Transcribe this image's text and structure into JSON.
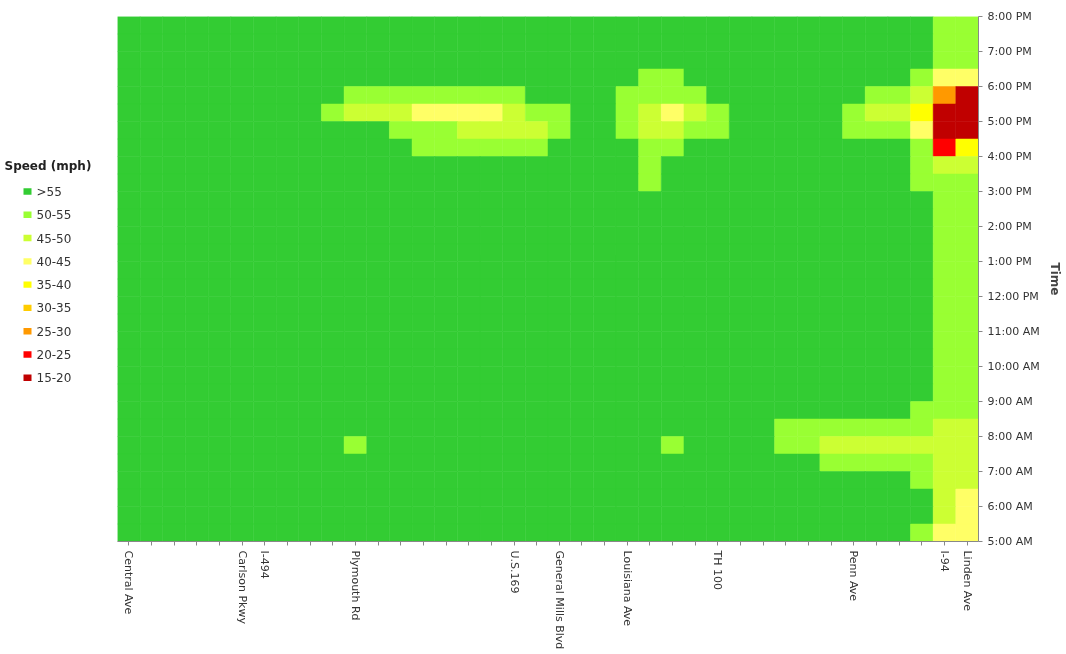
{
  "chart_data": {
    "type": "heatmap",
    "xlabel": null,
    "ylabel": "Time",
    "clabel": "Speed (mph)",
    "categories": [
      "Central Ave",
      null,
      null,
      null,
      null,
      "Carlson Pkwy",
      "I-494",
      null,
      null,
      null,
      "Plymouth Rd",
      null,
      null,
      null,
      null,
      null,
      null,
      "U.S.169",
      null,
      "General Mills Blvd",
      null,
      null,
      "Louisiana Ave",
      null,
      null,
      null,
      "TH 100",
      null,
      null,
      null,
      null,
      null,
      "Penn Ave",
      null,
      null,
      null,
      "I-94",
      "Linden Ave"
    ],
    "ylim": [
      5,
      20
    ],
    "yticks": [
      {
        "value": 5,
        "label": "5:00 AM"
      },
      {
        "value": 6,
        "label": "6:00 AM"
      },
      {
        "value": 7,
        "label": "7:00 AM"
      },
      {
        "value": 8,
        "label": "8:00 AM"
      },
      {
        "value": 9,
        "label": "9:00 AM"
      },
      {
        "value": 10,
        "label": "10:00 AM"
      },
      {
        "value": 11,
        "label": "11:00 AM"
      },
      {
        "value": 12,
        "label": "12:00 PM"
      },
      {
        "value": 13,
        "label": "1:00 PM"
      },
      {
        "value": 14,
        "label": "2:00 PM"
      },
      {
        "value": 15,
        "label": "3:00 PM"
      },
      {
        "value": 16,
        "label": "4:00 PM"
      },
      {
        "value": 17,
        "label": "5:00 PM"
      },
      {
        "value": 18,
        "label": "6:00 PM"
      },
      {
        "value": 19,
        "label": "7:00 PM"
      },
      {
        "value": 20,
        "label": "8:00 PM"
      }
    ],
    "cticks": [
      {
        "value": 55,
        "label": ">55"
      },
      {
        "value": 50,
        "label": "50-55"
      },
      {
        "value": 45,
        "label": "45-50"
      },
      {
        "value": 40,
        "label": "40-45"
      },
      {
        "value": 35,
        "label": "35-40"
      },
      {
        "value": 30,
        "label": "30-35"
      },
      {
        "value": 25,
        "label": "25-30"
      },
      {
        "value": 20,
        "label": "20-25"
      },
      {
        "value": 15,
        "label": "15-20"
      }
    ],
    "colors": [
      "#33cc33",
      "#99ff33",
      "#ccff33",
      "#ffff66",
      "#ffff00",
      "#ffcc00",
      "#ff9900",
      "#ff0000",
      "#c00000"
    ],
    "cells": [
      [
        55,
        55,
        55,
        55,
        55,
        55,
        55,
        55,
        55,
        55,
        55,
        55,
        55,
        55,
        55,
        55,
        55,
        55,
        55,
        55,
        55,
        55,
        55,
        55,
        55,
        55,
        55,
        55,
        55,
        55,
        55,
        55,
        55,
        55,
        55,
        55,
        50,
        50
      ],
      [
        55,
        55,
        55,
        55,
        55,
        55,
        55,
        55,
        55,
        55,
        55,
        55,
        55,
        55,
        55,
        55,
        55,
        55,
        55,
        55,
        55,
        55,
        55,
        55,
        55,
        55,
        55,
        55,
        55,
        55,
        55,
        55,
        55,
        55,
        55,
        55,
        50,
        50
      ],
      [
        55,
        55,
        55,
        55,
        55,
        55,
        55,
        55,
        55,
        55,
        55,
        55,
        55,
        55,
        55,
        55,
        55,
        55,
        55,
        55,
        55,
        55,
        55,
        55,
        55,
        55,
        55,
        55,
        55,
        55,
        55,
        55,
        55,
        55,
        55,
        55,
        50,
        50
      ],
      [
        55,
        55,
        55,
        55,
        55,
        55,
        55,
        55,
        55,
        55,
        55,
        55,
        55,
        55,
        55,
        55,
        55,
        55,
        55,
        55,
        55,
        55,
        55,
        50,
        50,
        55,
        55,
        55,
        55,
        55,
        55,
        55,
        55,
        55,
        55,
        50,
        40,
        40
      ],
      [
        55,
        55,
        55,
        55,
        55,
        55,
        55,
        55,
        55,
        55,
        50,
        50,
        50,
        50,
        50,
        50,
        50,
        50,
        55,
        55,
        55,
        55,
        50,
        50,
        50,
        50,
        55,
        55,
        55,
        55,
        55,
        55,
        55,
        50,
        50,
        45,
        25,
        15
      ],
      [
        55,
        55,
        55,
        55,
        55,
        55,
        55,
        55,
        55,
        50,
        45,
        45,
        45,
        40,
        40,
        40,
        40,
        45,
        50,
        50,
        55,
        55,
        50,
        45,
        40,
        45,
        50,
        55,
        55,
        55,
        55,
        55,
        50,
        45,
        45,
        35,
        15,
        15
      ],
      [
        55,
        55,
        55,
        55,
        55,
        55,
        55,
        55,
        55,
        55,
        55,
        55,
        50,
        50,
        50,
        45,
        45,
        45,
        45,
        50,
        55,
        55,
        50,
        45,
        45,
        50,
        50,
        55,
        55,
        55,
        55,
        55,
        50,
        50,
        50,
        40,
        15,
        15
      ],
      [
        55,
        55,
        55,
        55,
        55,
        55,
        55,
        55,
        55,
        55,
        55,
        55,
        55,
        50,
        50,
        50,
        50,
        50,
        50,
        55,
        55,
        55,
        55,
        50,
        50,
        55,
        55,
        55,
        55,
        55,
        55,
        55,
        55,
        55,
        55,
        50,
        20,
        35
      ],
      [
        55,
        55,
        55,
        55,
        55,
        55,
        55,
        55,
        55,
        55,
        55,
        55,
        55,
        55,
        55,
        55,
        55,
        55,
        55,
        55,
        55,
        55,
        55,
        50,
        55,
        55,
        55,
        55,
        55,
        55,
        55,
        55,
        55,
        55,
        55,
        50,
        45,
        45
      ],
      [
        55,
        55,
        55,
        55,
        55,
        55,
        55,
        55,
        55,
        55,
        55,
        55,
        55,
        55,
        55,
        55,
        55,
        55,
        55,
        55,
        55,
        55,
        55,
        50,
        55,
        55,
        55,
        55,
        55,
        55,
        55,
        55,
        55,
        55,
        55,
        50,
        50,
        50
      ],
      [
        55,
        55,
        55,
        55,
        55,
        55,
        55,
        55,
        55,
        55,
        55,
        55,
        55,
        55,
        55,
        55,
        55,
        55,
        55,
        55,
        55,
        55,
        55,
        55,
        55,
        55,
        55,
        55,
        55,
        55,
        55,
        55,
        55,
        55,
        55,
        55,
        50,
        50
      ],
      [
        55,
        55,
        55,
        55,
        55,
        55,
        55,
        55,
        55,
        55,
        55,
        55,
        55,
        55,
        55,
        55,
        55,
        55,
        55,
        55,
        55,
        55,
        55,
        55,
        55,
        55,
        55,
        55,
        55,
        55,
        55,
        55,
        55,
        55,
        55,
        55,
        50,
        50
      ],
      [
        55,
        55,
        55,
        55,
        55,
        55,
        55,
        55,
        55,
        55,
        55,
        55,
        55,
        55,
        55,
        55,
        55,
        55,
        55,
        55,
        55,
        55,
        55,
        55,
        55,
        55,
        55,
        55,
        55,
        55,
        55,
        55,
        55,
        55,
        55,
        55,
        50,
        50
      ],
      [
        55,
        55,
        55,
        55,
        55,
        55,
        55,
        55,
        55,
        55,
        55,
        55,
        55,
        55,
        55,
        55,
        55,
        55,
        55,
        55,
        55,
        55,
        55,
        55,
        55,
        55,
        55,
        55,
        55,
        55,
        55,
        55,
        55,
        55,
        55,
        55,
        50,
        50
      ],
      [
        55,
        55,
        55,
        55,
        55,
        55,
        55,
        55,
        55,
        55,
        55,
        55,
        55,
        55,
        55,
        55,
        55,
        55,
        55,
        55,
        55,
        55,
        55,
        55,
        55,
        55,
        55,
        55,
        55,
        55,
        55,
        55,
        55,
        55,
        55,
        55,
        50,
        50
      ],
      [
        55,
        55,
        55,
        55,
        55,
        55,
        55,
        55,
        55,
        55,
        55,
        55,
        55,
        55,
        55,
        55,
        55,
        55,
        55,
        55,
        55,
        55,
        55,
        55,
        55,
        55,
        55,
        55,
        55,
        55,
        55,
        55,
        55,
        55,
        55,
        55,
        50,
        50
      ],
      [
        55,
        55,
        55,
        55,
        55,
        55,
        55,
        55,
        55,
        55,
        55,
        55,
        55,
        55,
        55,
        55,
        55,
        55,
        55,
        55,
        55,
        55,
        55,
        55,
        55,
        55,
        55,
        55,
        55,
        55,
        55,
        55,
        55,
        55,
        55,
        55,
        50,
        50
      ],
      [
        55,
        55,
        55,
        55,
        55,
        55,
        55,
        55,
        55,
        55,
        55,
        55,
        55,
        55,
        55,
        55,
        55,
        55,
        55,
        55,
        55,
        55,
        55,
        55,
        55,
        55,
        55,
        55,
        55,
        55,
        55,
        55,
        55,
        55,
        55,
        55,
        50,
        50
      ],
      [
        55,
        55,
        55,
        55,
        55,
        55,
        55,
        55,
        55,
        55,
        55,
        55,
        55,
        55,
        55,
        55,
        55,
        55,
        55,
        55,
        55,
        55,
        55,
        55,
        55,
        55,
        55,
        55,
        55,
        55,
        55,
        55,
        55,
        55,
        55,
        55,
        50,
        50
      ],
      [
        55,
        55,
        55,
        55,
        55,
        55,
        55,
        55,
        55,
        55,
        55,
        55,
        55,
        55,
        55,
        55,
        55,
        55,
        55,
        55,
        55,
        55,
        55,
        55,
        55,
        55,
        55,
        55,
        55,
        55,
        55,
        55,
        55,
        55,
        55,
        55,
        50,
        50
      ],
      [
        55,
        55,
        55,
        55,
        55,
        55,
        55,
        55,
        55,
        55,
        55,
        55,
        55,
        55,
        55,
        55,
        55,
        55,
        55,
        55,
        55,
        55,
        55,
        55,
        55,
        55,
        55,
        55,
        55,
        55,
        55,
        55,
        55,
        55,
        55,
        55,
        50,
        50
      ],
      [
        55,
        55,
        55,
        55,
        55,
        55,
        55,
        55,
        55,
        55,
        55,
        55,
        55,
        55,
        55,
        55,
        55,
        55,
        55,
        55,
        55,
        55,
        55,
        55,
        55,
        55,
        55,
        55,
        55,
        55,
        55,
        55,
        55,
        55,
        55,
        55,
        50,
        50
      ],
      [
        55,
        55,
        55,
        55,
        55,
        55,
        55,
        55,
        55,
        55,
        55,
        55,
        55,
        55,
        55,
        55,
        55,
        55,
        55,
        55,
        55,
        55,
        55,
        55,
        55,
        55,
        55,
        55,
        55,
        55,
        55,
        55,
        55,
        55,
        55,
        50,
        50,
        50
      ],
      [
        55,
        55,
        55,
        55,
        55,
        55,
        55,
        55,
        55,
        55,
        55,
        55,
        55,
        55,
        55,
        55,
        55,
        55,
        55,
        55,
        55,
        55,
        55,
        55,
        55,
        55,
        55,
        55,
        55,
        50,
        50,
        50,
        50,
        50,
        50,
        50,
        45,
        45
      ],
      [
        55,
        55,
        55,
        55,
        55,
        55,
        55,
        55,
        55,
        55,
        50,
        55,
        55,
        55,
        55,
        55,
        55,
        55,
        55,
        55,
        55,
        55,
        55,
        55,
        50,
        55,
        55,
        55,
        55,
        50,
        50,
        45,
        45,
        45,
        45,
        45,
        45,
        45
      ],
      [
        55,
        55,
        55,
        55,
        55,
        55,
        55,
        55,
        55,
        55,
        55,
        55,
        55,
        55,
        55,
        55,
        55,
        55,
        55,
        55,
        55,
        55,
        55,
        55,
        55,
        55,
        55,
        55,
        55,
        55,
        55,
        50,
        50,
        50,
        50,
        50,
        45,
        45
      ],
      [
        55,
        55,
        55,
        55,
        55,
        55,
        55,
        55,
        55,
        55,
        55,
        55,
        55,
        55,
        55,
        55,
        55,
        55,
        55,
        55,
        55,
        55,
        55,
        55,
        55,
        55,
        55,
        55,
        55,
        55,
        55,
        55,
        55,
        55,
        55,
        50,
        45,
        45
      ],
      [
        55,
        55,
        55,
        55,
        55,
        55,
        55,
        55,
        55,
        55,
        55,
        55,
        55,
        55,
        55,
        55,
        55,
        55,
        55,
        55,
        55,
        55,
        55,
        55,
        55,
        55,
        55,
        55,
        55,
        55,
        55,
        55,
        55,
        55,
        55,
        55,
        45,
        40
      ],
      [
        55,
        55,
        55,
        55,
        55,
        55,
        55,
        55,
        55,
        55,
        55,
        55,
        55,
        55,
        55,
        55,
        55,
        55,
        55,
        55,
        55,
        55,
        55,
        55,
        55,
        55,
        55,
        55,
        55,
        55,
        55,
        55,
        55,
        55,
        55,
        55,
        45,
        40
      ],
      [
        55,
        55,
        55,
        55,
        55,
        55,
        55,
        55,
        55,
        55,
        55,
        55,
        55,
        55,
        55,
        55,
        55,
        55,
        55,
        55,
        55,
        55,
        55,
        55,
        55,
        55,
        55,
        55,
        55,
        55,
        55,
        55,
        55,
        55,
        55,
        50,
        40,
        40
      ]
    ]
  }
}
